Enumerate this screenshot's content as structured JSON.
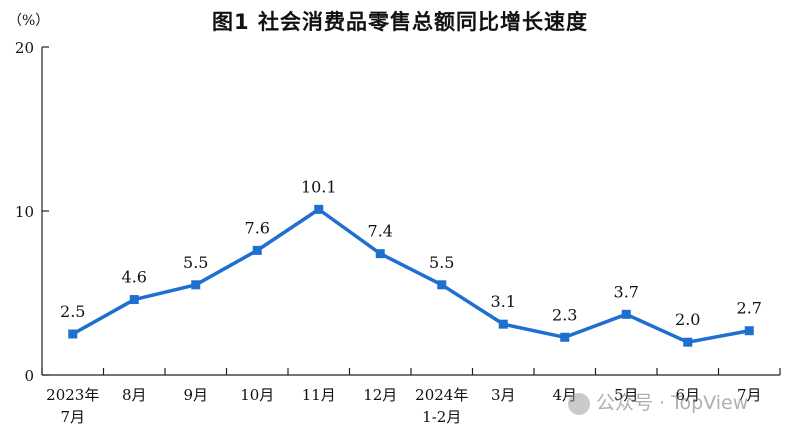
{
  "chart_data": {
    "type": "line",
    "title": "图1  社会消费品零售总额同比增长速度",
    "y_unit": "（%）",
    "ylim": [
      0,
      20
    ],
    "yticks": [
      "0",
      "10",
      "20"
    ],
    "grid": false,
    "categories": [
      [
        "2023年",
        "7月"
      ],
      [
        "8月"
      ],
      [
        "9月"
      ],
      [
        "10月"
      ],
      [
        "11月"
      ],
      [
        "12月"
      ],
      [
        "2024年",
        "1-2月"
      ],
      [
        "3月"
      ],
      [
        "4月"
      ],
      [
        "5月"
      ],
      [
        "6月"
      ],
      [
        "7月"
      ]
    ],
    "series": [
      {
        "values": [
          2.5,
          4.6,
          5.5,
          7.6,
          10.1,
          7.4,
          5.5,
          3.1,
          2.3,
          3.7,
          2.0,
          2.7
        ],
        "labels": [
          "2.5",
          "4.6",
          "5.5",
          "7.6",
          "10.1",
          "7.4",
          "5.5",
          "3.1",
          "2.3",
          "3.7",
          "2.0",
          "2.7"
        ],
        "color": "#1f6fd1"
      }
    ],
    "axis_color": "#222222"
  },
  "watermark": {
    "text": "公众号 · TopView",
    "icon": "wechat-icon"
  }
}
